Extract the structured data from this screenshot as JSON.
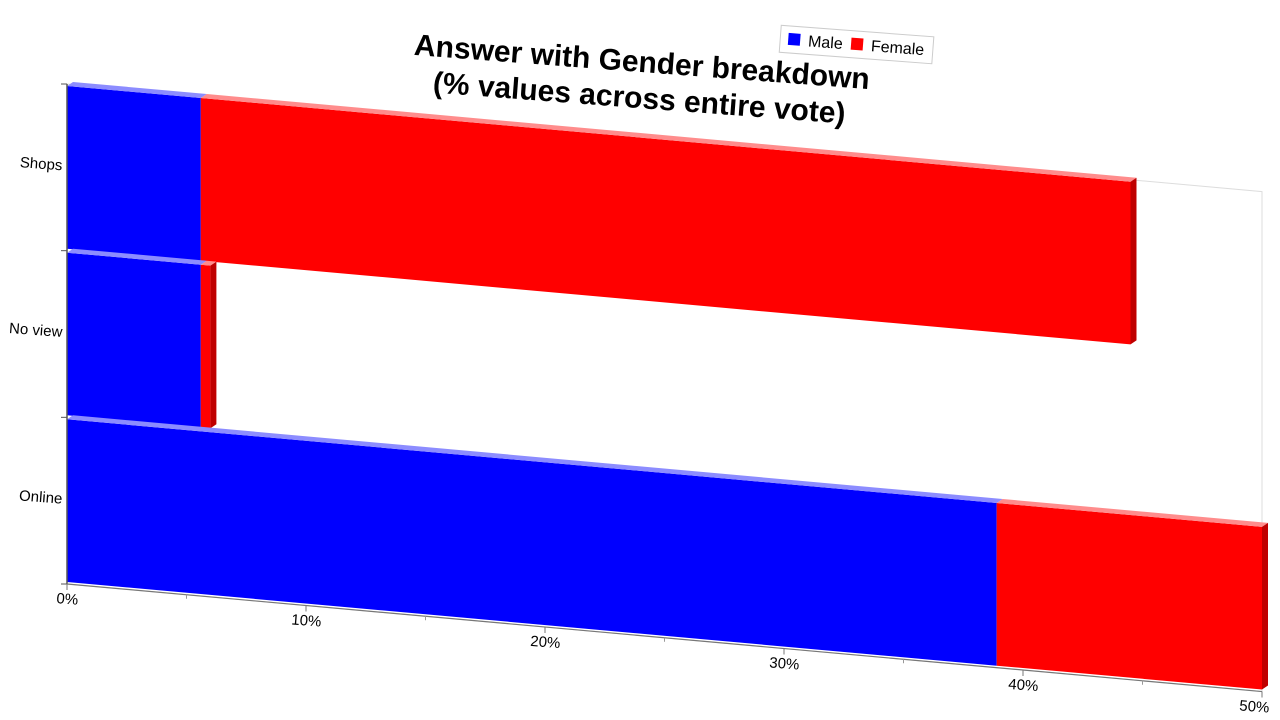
{
  "chart_data": {
    "type": "bar",
    "orientation": "horizontal",
    "stacked": true,
    "title_lines": [
      "Answer with Gender breakdown",
      "(% values across entire vote)"
    ],
    "categories": [
      "Shops",
      "No view",
      "Online"
    ],
    "series": [
      {
        "name": "Male",
        "color": "#0000ff",
        "values": [
          5.6,
          5.6,
          38.9
        ]
      },
      {
        "name": "Female",
        "color": "#ff0000",
        "values": [
          38.9,
          0.4,
          11.1
        ]
      }
    ],
    "xlim": [
      0,
      50
    ],
    "x_ticks": [
      "0%",
      "10%",
      "20%",
      "30%",
      "40%",
      "50%"
    ],
    "legend": {
      "position": "top-right"
    },
    "grid": false
  }
}
